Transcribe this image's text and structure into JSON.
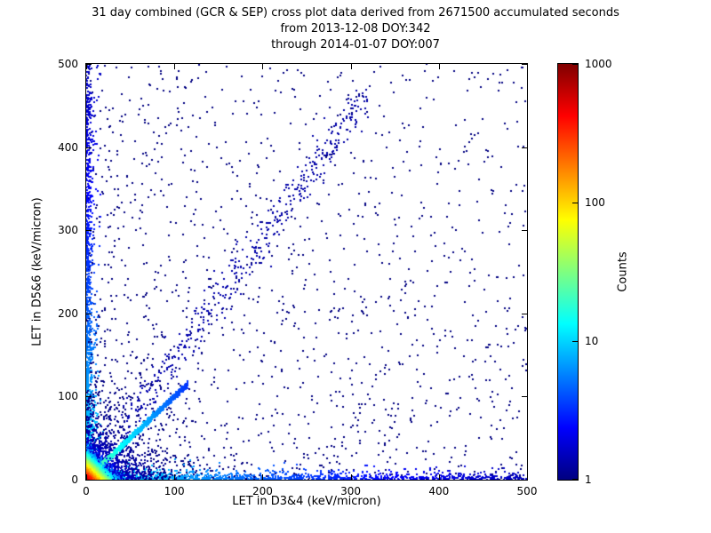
{
  "chart_data": {
    "type": "scatter",
    "title_lines": [
      "31 day combined (GCR & SEP) cross plot data derived from 2671500 accumulated seconds",
      "from 2013-12-08 DOY:342",
      "through 2014-01-07 DOY:007"
    ],
    "xlabel": "LET in D3&4 (keV/micron)",
    "ylabel": "LET in D5&6 (keV/micron)",
    "xlim": [
      0,
      500
    ],
    "ylim": [
      0,
      500
    ],
    "xticks": [
      0,
      100,
      200,
      300,
      400,
      500
    ],
    "yticks": [
      0,
      100,
      200,
      300,
      400,
      500
    ],
    "grid": false,
    "legend": null,
    "colorbar": {
      "label": "Counts",
      "scale": "log",
      "min": 1,
      "max": 1000,
      "ticks": [
        1,
        10,
        100,
        1000
      ],
      "colormap": "jet",
      "color_low": "#000080",
      "color_high": "#800000"
    },
    "seed": 20140107,
    "features": [
      {
        "name": "sparse-low-value-background",
        "kind": "background",
        "n": 1000,
        "pow": 1.8,
        "count": 1
      },
      {
        "name": "uniform-background",
        "kind": "background",
        "n": 550,
        "pow": 1.0,
        "count": 1
      },
      {
        "name": "upper-diagonal-band",
        "kind": "diagonal",
        "n": 450,
        "x_min": 40,
        "x_max": 320,
        "x_pow": 1.0,
        "slope": 1.45,
        "noise": 15,
        "count_peak": 0.4,
        "count_falloff": 1000
      },
      {
        "name": "x-axis-band",
        "kind": "axis-band",
        "axis": "x",
        "n": 1600,
        "max": 500,
        "pow": 2.2,
        "thickness": 3.5,
        "count_peak": 12,
        "count_falloff": 160
      },
      {
        "name": "y-axis-band",
        "kind": "axis-band",
        "axis": "y",
        "n": 1600,
        "max": 500,
        "pow": 2.2,
        "thickness": 3.5,
        "count_peak": 12,
        "count_falloff": 160
      },
      {
        "name": "origin-halo",
        "kind": "exp2d",
        "n": 1500,
        "scale_x": 28,
        "scale_y": 28,
        "count_peak": 3,
        "count_falloff": 30
      },
      {
        "name": "identity-diagonal",
        "kind": "diagonal",
        "n": 2400,
        "x_min": 0,
        "x_max": 115,
        "x_pow": 1.5,
        "slope": 1.0,
        "noise": 1.6,
        "count_peak": 30,
        "count_falloff": 45
      },
      {
        "name": "origin-hotspot",
        "kind": "exp2d",
        "n": 6500,
        "scale_x": 5.5,
        "scale_y": 5.5,
        "count_peak": 900,
        "count_falloff": 7.5
      }
    ]
  }
}
